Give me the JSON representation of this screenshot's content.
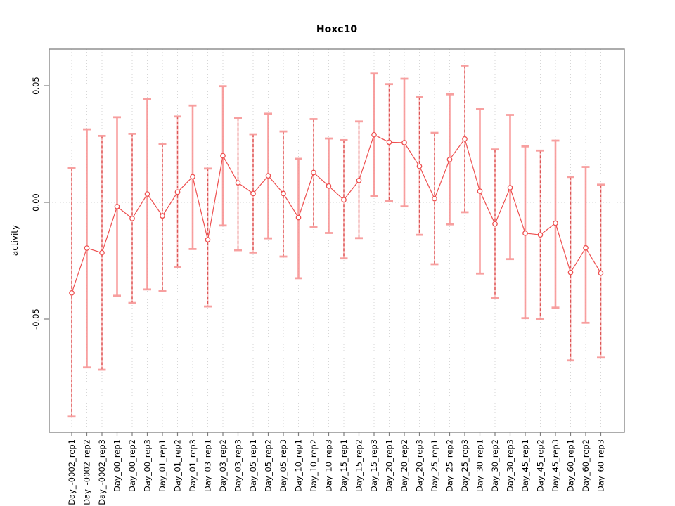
{
  "chart_data": {
    "type": "scatter",
    "title": "Hoxc10",
    "xlabel": "",
    "ylabel": "activity",
    "legend": "none",
    "grid": "vertical dotted gridline per category; horizontal dotted line at y=0",
    "ylim": [
      -0.098,
      0.066
    ],
    "y_ticks": {
      "values": [
        0.05,
        0.0,
        -0.05
      ],
      "labels": [
        "0.05",
        "0.00",
        "-0.05"
      ]
    },
    "categories": [
      "Day_-0002_rep1",
      "Day_-0002_rep2",
      "Day_-0002_rep3",
      "Day_00_rep1",
      "Day_00_rep2",
      "Day_00_rep3",
      "Day_01_rep1",
      "Day_01_rep2",
      "Day_01_rep3",
      "Day_03_rep1",
      "Day_03_rep2",
      "Day_03_rep3",
      "Day_05_rep1",
      "Day_05_rep2",
      "Day_05_rep3",
      "Day_10_rep1",
      "Day_10_rep2",
      "Day_10_rep3",
      "Day_15_rep1",
      "Day_15_rep2",
      "Day_15_rep3",
      "Day_20_rep1",
      "Day_20_rep2",
      "Day_20_rep3",
      "Day_25_rep1",
      "Day_25_rep2",
      "Day_25_rep3",
      "Day_30_rep1",
      "Day_30_rep2",
      "Day_30_rep3",
      "Day_45_rep1",
      "Day_45_rep2",
      "Day_45_rep3",
      "Day_60_rep1",
      "Day_60_rep2",
      "Day_60_rep3"
    ],
    "values": [
      -0.0388,
      -0.0196,
      -0.0216,
      -0.0018,
      -0.0069,
      0.0036,
      -0.0058,
      0.0044,
      0.011,
      -0.016,
      0.02,
      0.0084,
      0.0038,
      0.0114,
      0.0038,
      -0.0065,
      0.0128,
      0.007,
      0.0011,
      0.0094,
      0.029,
      0.0258,
      0.0256,
      0.0155,
      0.0016,
      0.0184,
      0.0272,
      0.0048,
      -0.0092,
      0.0063,
      -0.0132,
      -0.0139,
      -0.0089,
      -0.03,
      -0.0195,
      -0.0303
    ],
    "upper": [
      0.0148,
      0.0313,
      0.0285,
      0.0365,
      0.0294,
      0.0443,
      0.025,
      0.0368,
      0.0415,
      0.0145,
      0.0498,
      0.0362,
      0.0292,
      0.038,
      0.0304,
      0.0187,
      0.0357,
      0.0274,
      0.0267,
      0.0347,
      0.0552,
      0.0507,
      0.053,
      0.0452,
      0.0298,
      0.0463,
      0.0586,
      0.0401,
      0.0227,
      0.0375,
      0.024,
      0.0222,
      0.0265,
      0.0109,
      0.0152,
      0.0076
    ],
    "lower": [
      -0.0918,
      -0.0707,
      -0.0717,
      -0.04,
      -0.0431,
      -0.0373,
      -0.038,
      -0.0278,
      -0.02,
      -0.0446,
      -0.0099,
      -0.0205,
      -0.0215,
      -0.0154,
      -0.0232,
      -0.0325,
      -0.0106,
      -0.0131,
      -0.024,
      -0.0153,
      0.0026,
      0.0006,
      -0.0017,
      -0.0139,
      -0.0265,
      -0.0094,
      -0.0042,
      -0.0305,
      -0.041,
      -0.0243,
      -0.0496,
      -0.0501,
      -0.0451,
      -0.0677,
      -0.0516,
      -0.0665
    ],
    "bar_styles": [
      "dashed",
      "solid",
      "dashed",
      "solid",
      "dashed",
      "solid",
      "dashed",
      "dashed",
      "solid",
      "dashed",
      "solid",
      "dashed",
      "dashed",
      "solid",
      "dashed",
      "solid",
      "dashed",
      "solid",
      "dashed",
      "dashed",
      "solid",
      "dashed",
      "solid",
      "dashed",
      "dashed",
      "solid",
      "dashed",
      "solid",
      "dashed",
      "solid",
      "solid",
      "dashed",
      "solid",
      "dashed",
      "solid",
      "dashed"
    ],
    "colors": {
      "series_line": "#ee5050",
      "point_stroke": "#ee5050",
      "point_fill": "#ffffff",
      "bar_solid": "#f89595",
      "bar_dashed": "#dd5555",
      "bar_cap": "#f79b9b",
      "gridline": "#d6d6d6",
      "frame": "#888888",
      "tick": "#7f7f7f",
      "text": "#000000",
      "background": "#ffffff"
    }
  }
}
